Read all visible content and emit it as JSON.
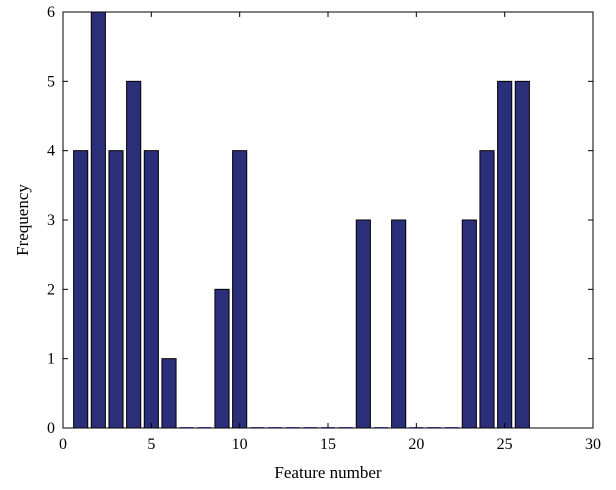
{
  "chart_data": {
    "type": "bar",
    "title": "",
    "xlabel": "Feature number",
    "ylabel": "Frequency",
    "xlim": [
      0,
      30
    ],
    "ylim": [
      0,
      6
    ],
    "xticks": [
      0,
      5,
      10,
      15,
      20,
      25,
      30
    ],
    "yticks": [
      0,
      1,
      2,
      3,
      4,
      5,
      6
    ],
    "grid": false,
    "legend": "none",
    "bar_color": "#2b2f7a",
    "x": [
      1,
      2,
      3,
      4,
      5,
      6,
      7,
      8,
      9,
      10,
      11,
      12,
      13,
      14,
      15,
      16,
      17,
      18,
      19,
      20,
      21,
      22,
      23,
      24,
      25,
      26
    ],
    "values": [
      4,
      6,
      4,
      5,
      4,
      1,
      0,
      0,
      2,
      4,
      0,
      0,
      0,
      0,
      0,
      0,
      3,
      0,
      3,
      0,
      0,
      0,
      3,
      4,
      5,
      5
    ]
  }
}
